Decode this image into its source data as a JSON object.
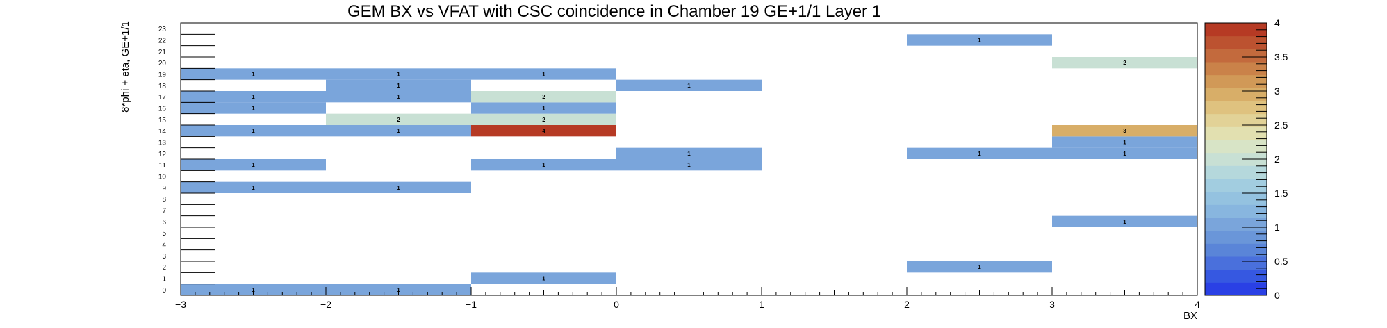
{
  "chart_data": {
    "type": "heatmap",
    "title": "GEM BX vs VFAT with CSC coincidence in Chamber 19 GE+1/1 Layer 1",
    "xlabel": "BX",
    "ylabel": "8*phi + eta, GE+1/1",
    "x_range": [
      -3,
      4
    ],
    "x_bin_edges": [
      -3,
      -2,
      -1,
      0,
      1,
      2,
      3,
      4
    ],
    "x_tick_labels": [
      "−3",
      "−2",
      "−1",
      "0",
      "1",
      "2",
      "3",
      "4"
    ],
    "y_range": [
      0,
      24
    ],
    "y_tick_labels": [
      "0",
      "1",
      "2",
      "3",
      "4",
      "5",
      "6",
      "7",
      "8",
      "9",
      "10",
      "11",
      "12",
      "13",
      "14",
      "15",
      "16",
      "17",
      "18",
      "19",
      "20",
      "21",
      "22",
      "23"
    ],
    "z_range": [
      0,
      4
    ],
    "z_tick_labels": [
      "0",
      "0.5",
      "1",
      "1.5",
      "2",
      "2.5",
      "3",
      "3.5",
      "4"
    ],
    "palette": [
      "#2a40e5",
      "#3658e1",
      "#4a70dc",
      "#5a85d8",
      "#6a96d9",
      "#7aa5db",
      "#88b6df",
      "#94c2e0",
      "#a2cde0",
      "#b5d8dc",
      "#c8e0d4",
      "#d8e4c6",
      "#e2e0b0",
      "#e2d297",
      "#dfc27f",
      "#d8ae68",
      "#d19957",
      "#ca8249",
      "#c36a3d",
      "#bc5230",
      "#b63a24"
    ],
    "cells": [
      {
        "x": -3,
        "y": 0,
        "v": 1
      },
      {
        "x": -2,
        "y": 0,
        "v": 1
      },
      {
        "x": -1,
        "y": 1,
        "v": 1
      },
      {
        "x": 2,
        "y": 2,
        "v": 1
      },
      {
        "x": 3,
        "y": 6,
        "v": 1
      },
      {
        "x": -3,
        "y": 9,
        "v": 1
      },
      {
        "x": -2,
        "y": 9,
        "v": 1
      },
      {
        "x": -3,
        "y": 11,
        "v": 1
      },
      {
        "x": -1,
        "y": 11,
        "v": 1
      },
      {
        "x": 0,
        "y": 11,
        "v": 1
      },
      {
        "x": 0,
        "y": 12,
        "v": 1
      },
      {
        "x": 2,
        "y": 12,
        "v": 1
      },
      {
        "x": 3,
        "y": 12,
        "v": 1
      },
      {
        "x": 3,
        "y": 13,
        "v": 1
      },
      {
        "x": -3,
        "y": 14,
        "v": 1
      },
      {
        "x": -2,
        "y": 14,
        "v": 1
      },
      {
        "x": -1,
        "y": 14,
        "v": 4
      },
      {
        "x": 3,
        "y": 14,
        "v": 3
      },
      {
        "x": -2,
        "y": 15,
        "v": 2
      },
      {
        "x": -1,
        "y": 15,
        "v": 2
      },
      {
        "x": -3,
        "y": 16,
        "v": 1
      },
      {
        "x": -1,
        "y": 16,
        "v": 1
      },
      {
        "x": -3,
        "y": 17,
        "v": 1
      },
      {
        "x": -2,
        "y": 17,
        "v": 1
      },
      {
        "x": -1,
        "y": 17,
        "v": 2
      },
      {
        "x": -2,
        "y": 18,
        "v": 1
      },
      {
        "x": 0,
        "y": 18,
        "v": 1
      },
      {
        "x": -3,
        "y": 19,
        "v": 1
      },
      {
        "x": -2,
        "y": 19,
        "v": 1
      },
      {
        "x": -1,
        "y": 19,
        "v": 1
      },
      {
        "x": 3,
        "y": 20,
        "v": 2
      },
      {
        "x": 2,
        "y": 22,
        "v": 1
      }
    ]
  }
}
